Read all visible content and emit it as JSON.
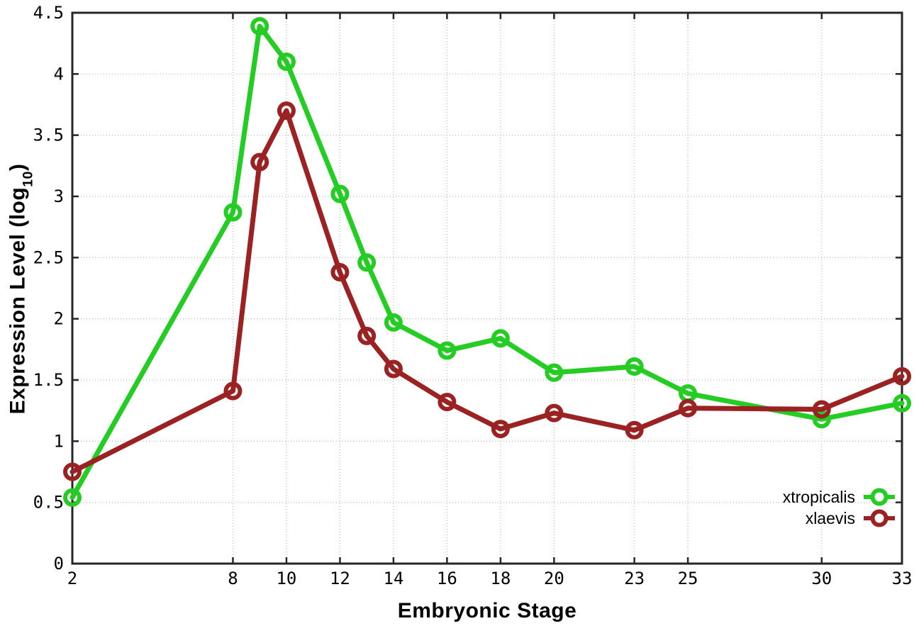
{
  "chart_data": {
    "type": "line",
    "title": "",
    "xlabel": "Embryonic Stage",
    "ylabel": "Expression Level (log10)",
    "ylabel_parts": {
      "main": "Expression Level (log",
      "sub": "10",
      "close": ")"
    },
    "xlim": [
      2,
      33
    ],
    "ylim": [
      0,
      4.5
    ],
    "grid": "dotted",
    "legend_position": "inside-bottom-right",
    "x": [
      2,
      8,
      9,
      10,
      12,
      13,
      14,
      16,
      18,
      20,
      23,
      25,
      30,
      33
    ],
    "x_ticks": {
      "values": [
        2,
        8,
        10,
        12,
        14,
        16,
        18,
        20,
        23,
        25,
        30,
        33
      ],
      "labels": [
        "2",
        "8",
        "10",
        "12",
        "14",
        "16",
        "18",
        "20",
        "23",
        "25",
        "30",
        "33"
      ]
    },
    "y_ticks": {
      "values": [
        0,
        0.5,
        1,
        1.5,
        2,
        2.5,
        3,
        3.5,
        4,
        4.5
      ],
      "labels": [
        "0",
        "0.5",
        "1",
        "1.5",
        "2",
        "2.5",
        "3",
        "3.5",
        "4",
        "4.5"
      ]
    },
    "series": [
      {
        "name": "xtropicalis",
        "color": "#24cc24",
        "values": [
          0.54,
          2.87,
          4.39,
          4.1,
          3.02,
          2.46,
          1.97,
          1.74,
          1.84,
          1.56,
          1.61,
          1.39,
          1.18,
          1.31
        ]
      },
      {
        "name": "xlaevis",
        "color": "#9b2222",
        "values": [
          0.75,
          1.41,
          3.28,
          3.7,
          2.38,
          1.86,
          1.59,
          1.32,
          1.1,
          1.23,
          1.09,
          1.27,
          1.26,
          1.53
        ]
      }
    ],
    "colors": {
      "grid": "#b8b8b8",
      "border": "#262626",
      "tick_text": "#000000"
    }
  }
}
